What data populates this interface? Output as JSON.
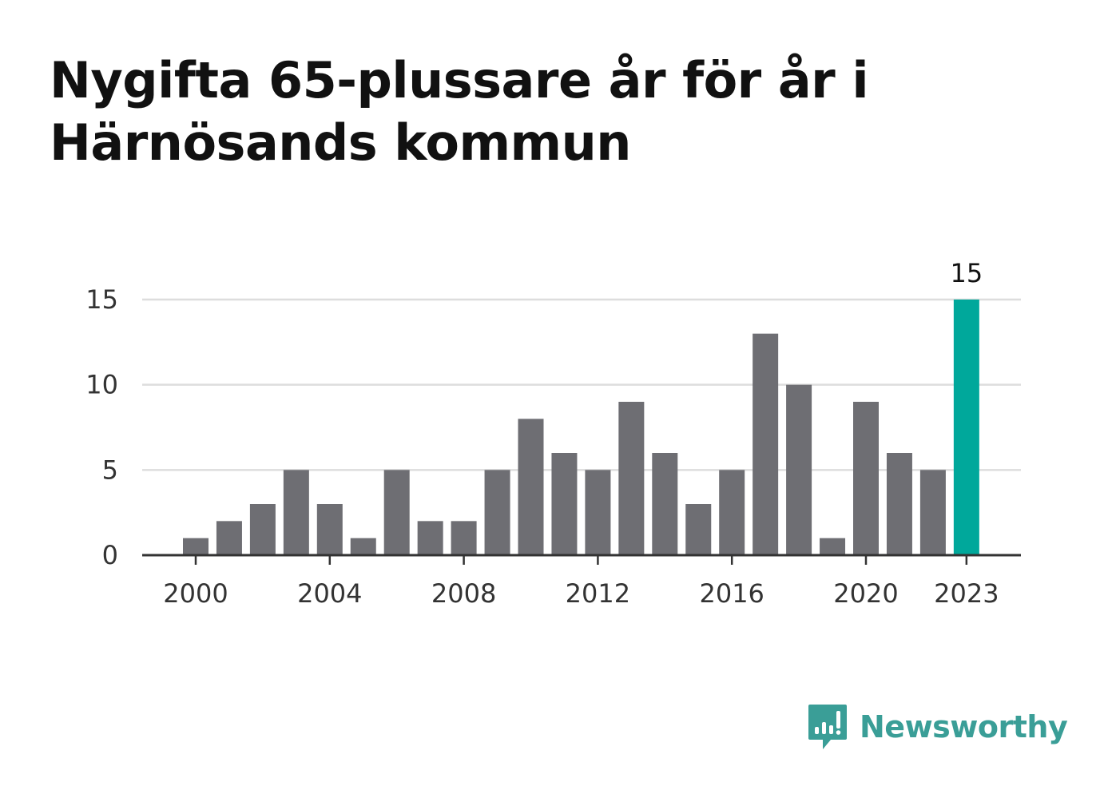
{
  "title": "Nygifta 65-plussare år för år i Härnösands kommun",
  "logo": {
    "text": "Newsworthy",
    "icon": "bar-chart-speech-bubble-icon",
    "color": "#3a9e97"
  },
  "colors": {
    "bar": "#6e6e73",
    "highlight": "#00a89b",
    "grid": "#dddddd",
    "axis": "#333333"
  },
  "chart_data": {
    "type": "bar",
    "title": "Nygifta 65-plussare år för år i Härnösands kommun",
    "xlabel": "",
    "ylabel": "",
    "categories": [
      2000,
      2001,
      2002,
      2003,
      2004,
      2005,
      2006,
      2007,
      2008,
      2009,
      2010,
      2011,
      2012,
      2013,
      2014,
      2015,
      2016,
      2017,
      2018,
      2019,
      2020,
      2021,
      2022,
      2023
    ],
    "values": [
      1,
      2,
      3,
      5,
      3,
      1,
      5,
      2,
      2,
      5,
      8,
      6,
      5,
      9,
      6,
      3,
      5,
      13,
      10,
      1,
      9,
      6,
      5,
      15
    ],
    "ylim": [
      0,
      15
    ],
    "yticks": [
      0,
      5,
      10,
      15
    ],
    "xticks": [
      2000,
      2004,
      2008,
      2012,
      2016,
      2020,
      2023
    ],
    "highlight": {
      "category": 2023,
      "label": "15"
    },
    "grid": true,
    "legend": "none"
  }
}
